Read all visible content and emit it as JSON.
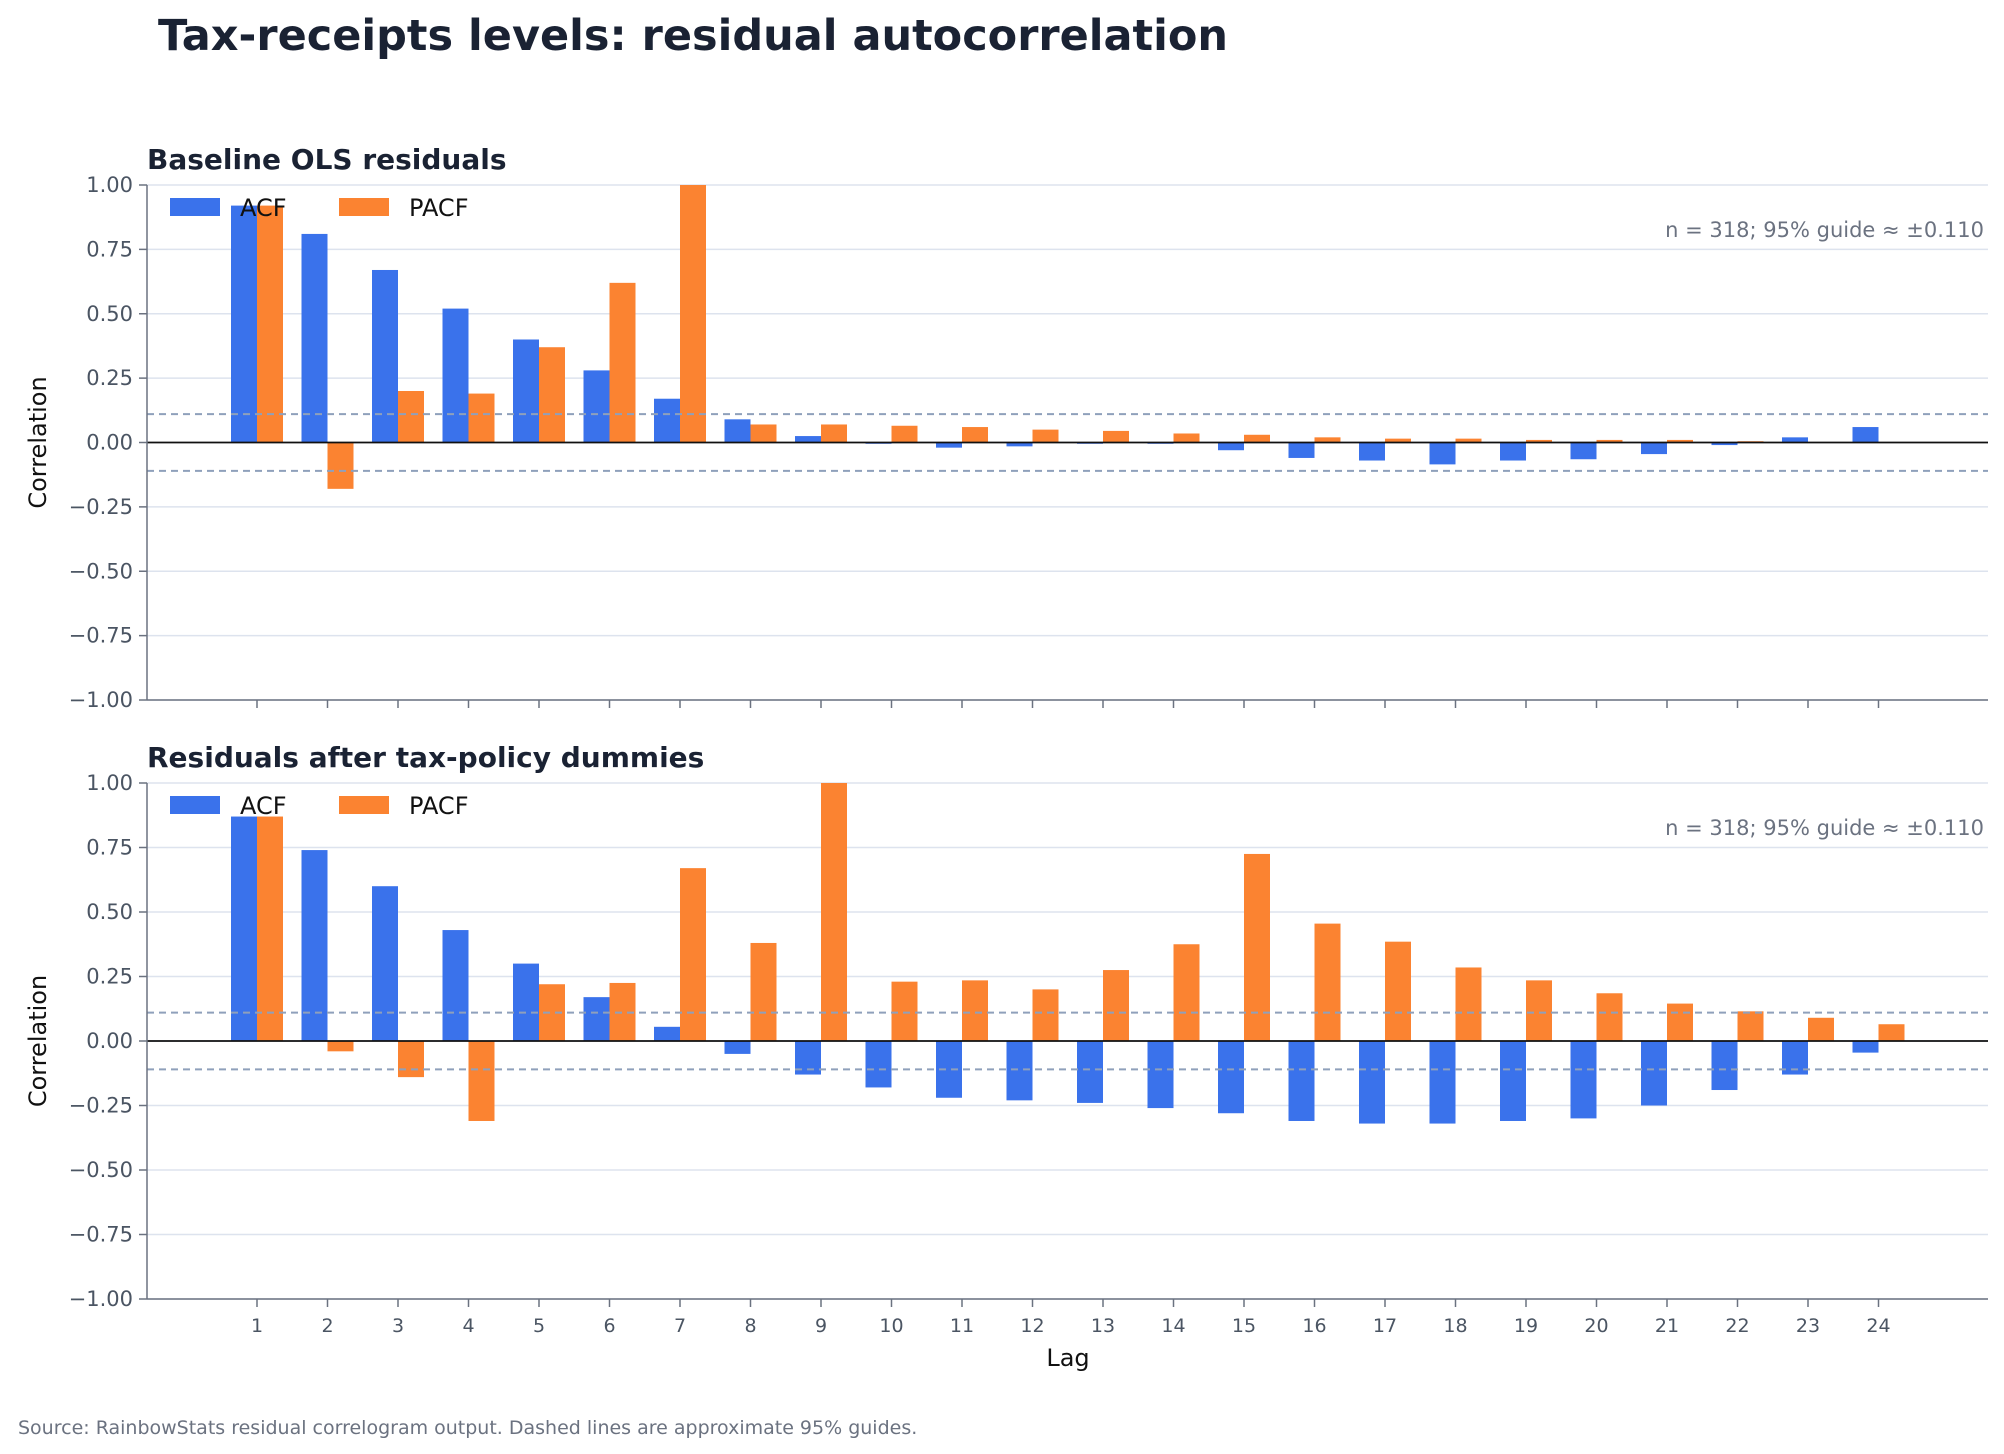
{
  "figure": {
    "title": "Tax-receipts levels: residual autocorrelation",
    "source": "Source: RainbowStats residual correlogram output. Dashed lines are approximate 95% guides.",
    "xlabel": "Lag",
    "colors": {
      "acf": "#3a72eb",
      "pacf": "#fb8331",
      "guide": "#8fa0bb",
      "grid": "#dde3ee",
      "zero": "#111111"
    }
  },
  "chart_data": [
    {
      "type": "bar",
      "title": "Baseline OLS residuals",
      "ylabel": "Correlation",
      "ylim": [
        -1,
        1
      ],
      "yticks": [
        1.0,
        0.75,
        0.5,
        0.25,
        0.0,
        -0.25,
        -0.5,
        -0.75,
        -1.0
      ],
      "ytick_labels": [
        "1.00",
        "0.75",
        "0.50",
        "0.25",
        "0.00",
        "−0.25",
        "−0.50",
        "−0.75",
        "−1.00"
      ],
      "categories": [
        "1",
        "2",
        "3",
        "4",
        "5",
        "6",
        "7",
        "8",
        "9",
        "10",
        "11",
        "12",
        "13",
        "14",
        "15",
        "16",
        "17",
        "18",
        "19",
        "20",
        "21",
        "22",
        "23",
        "24"
      ],
      "series": [
        {
          "name": "ACF",
          "values": [
            0.92,
            0.81,
            0.67,
            0.52,
            0.4,
            0.28,
            0.17,
            0.09,
            0.025,
            -0.005,
            -0.02,
            -0.015,
            -0.005,
            -0.005,
            -0.03,
            -0.06,
            -0.07,
            -0.085,
            -0.07,
            -0.065,
            -0.045,
            -0.01,
            0.02,
            0.06
          ]
        },
        {
          "name": "PACF",
          "values": [
            0.92,
            -0.18,
            0.2,
            0.19,
            0.37,
            0.62,
            1.0,
            0.07,
            0.07,
            0.065,
            0.06,
            0.05,
            0.045,
            0.035,
            0.03,
            0.02,
            0.015,
            0.015,
            0.01,
            0.01,
            0.01,
            0.005,
            0.0,
            0.0
          ]
        }
      ],
      "guide": 0.11,
      "note": "n = 318; 95% guide ≈ ±0.110",
      "legend": "top-left",
      "grid": "y"
    },
    {
      "type": "bar",
      "title": "Residuals after tax-policy dummies",
      "ylabel": "Correlation",
      "ylim": [
        -1,
        1
      ],
      "yticks": [
        1.0,
        0.75,
        0.5,
        0.25,
        0.0,
        -0.25,
        -0.5,
        -0.75,
        -1.0
      ],
      "ytick_labels": [
        "1.00",
        "0.75",
        "0.50",
        "0.25",
        "0.00",
        "−0.25",
        "−0.50",
        "−0.75",
        "−1.00"
      ],
      "categories": [
        "1",
        "2",
        "3",
        "4",
        "5",
        "6",
        "7",
        "8",
        "9",
        "10",
        "11",
        "12",
        "13",
        "14",
        "15",
        "16",
        "17",
        "18",
        "19",
        "20",
        "21",
        "22",
        "23",
        "24"
      ],
      "series": [
        {
          "name": "ACF",
          "values": [
            0.87,
            0.74,
            0.6,
            0.43,
            0.3,
            0.17,
            0.055,
            -0.05,
            -0.13,
            -0.18,
            -0.22,
            -0.23,
            -0.24,
            -0.26,
            -0.28,
            -0.31,
            -0.32,
            -0.32,
            -0.31,
            -0.3,
            -0.25,
            -0.19,
            -0.13,
            -0.045
          ]
        },
        {
          "name": "PACF",
          "values": [
            0.87,
            -0.04,
            -0.14,
            -0.31,
            0.22,
            0.225,
            0.67,
            0.38,
            1.0,
            0.23,
            0.235,
            0.2,
            0.275,
            0.375,
            0.725,
            0.455,
            0.385,
            0.285,
            0.235,
            0.185,
            0.145,
            0.115,
            0.09,
            0.065
          ]
        }
      ],
      "guide": 0.11,
      "note": "n = 318; 95% guide ≈ ±0.110",
      "legend": "top-left",
      "grid": "y"
    }
  ]
}
